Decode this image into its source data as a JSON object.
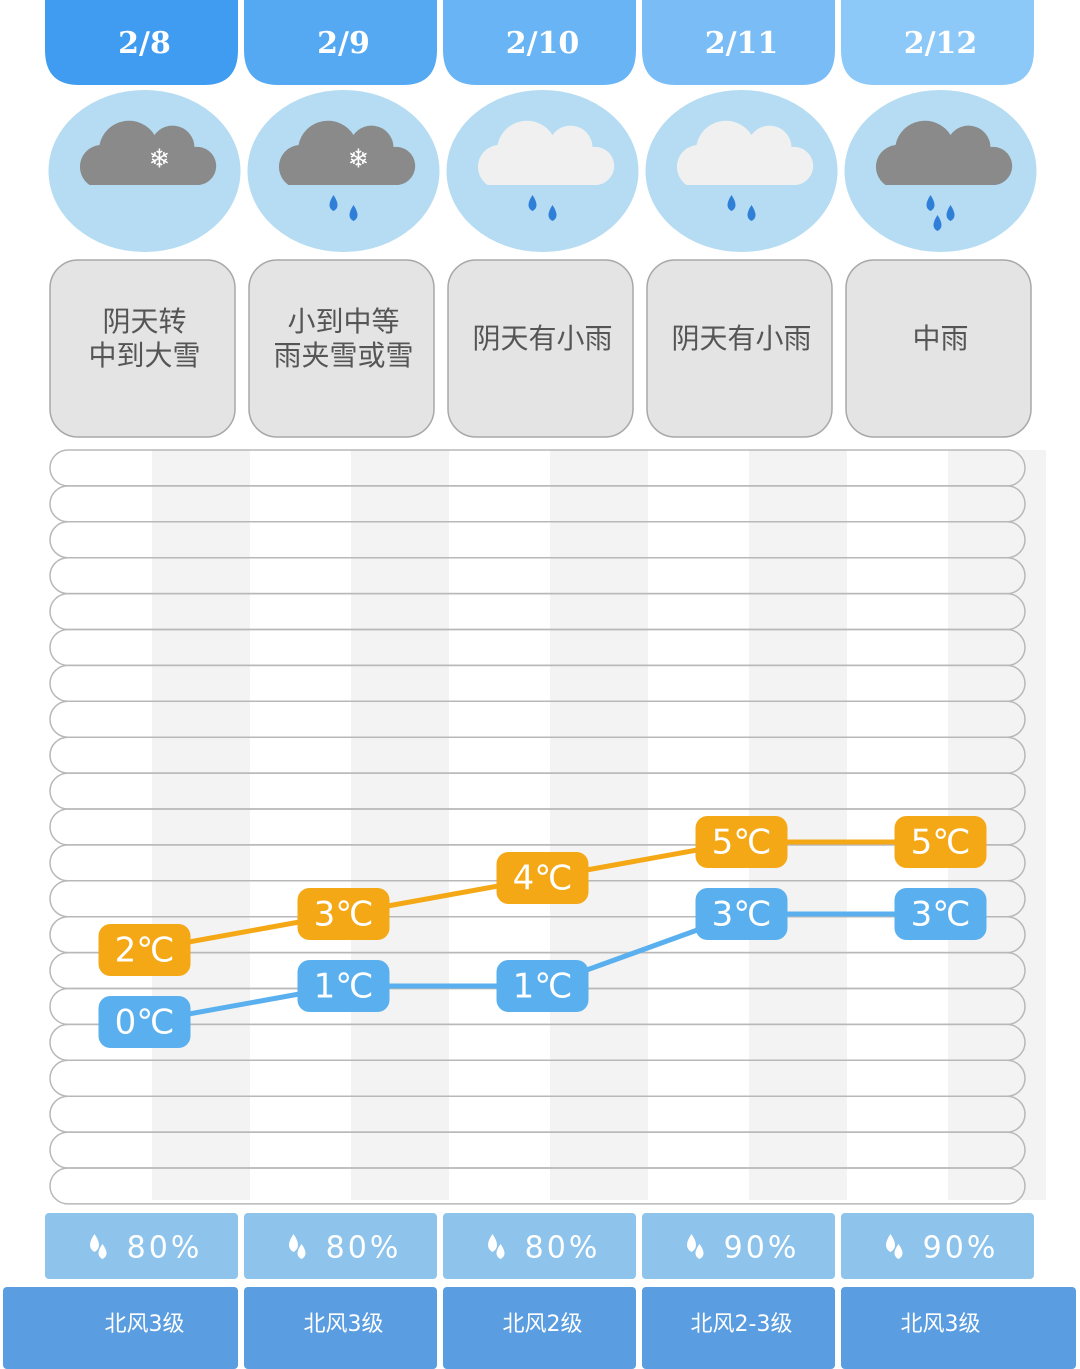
{
  "chart_data": {
    "type": "line",
    "categories": [
      "2/8",
      "2/9",
      "2/10",
      "2/11",
      "2/12"
    ],
    "conditions": [
      [
        "阴天转",
        "中到大雪"
      ],
      [
        "小到中等",
        "雨夹雪或雪"
      ],
      [
        "阴天有小雨"
      ],
      [
        "阴天有小雨"
      ],
      [
        "中雨"
      ]
    ],
    "series": [
      {
        "color": "#f5a816",
        "values": [
          2,
          3,
          4,
          5,
          5
        ],
        "value_labels": [
          "2℃",
          "3℃",
          "4℃",
          "5℃",
          "5℃"
        ]
      },
      {
        "color": "#5ab0ee",
        "values": [
          0,
          1,
          1,
          3,
          3
        ],
        "value_labels": [
          "0℃",
          "1℃",
          "1℃",
          "3℃",
          "3℃"
        ]
      }
    ],
    "ylim": [
      -5,
      16
    ],
    "precipitation": [
      "80%",
      "80%",
      "80%",
      "90%",
      "90%"
    ],
    "wind": [
      "北风3级",
      "北风3级",
      "北风2级",
      "北风2-3级",
      "北风3级"
    ]
  }
}
